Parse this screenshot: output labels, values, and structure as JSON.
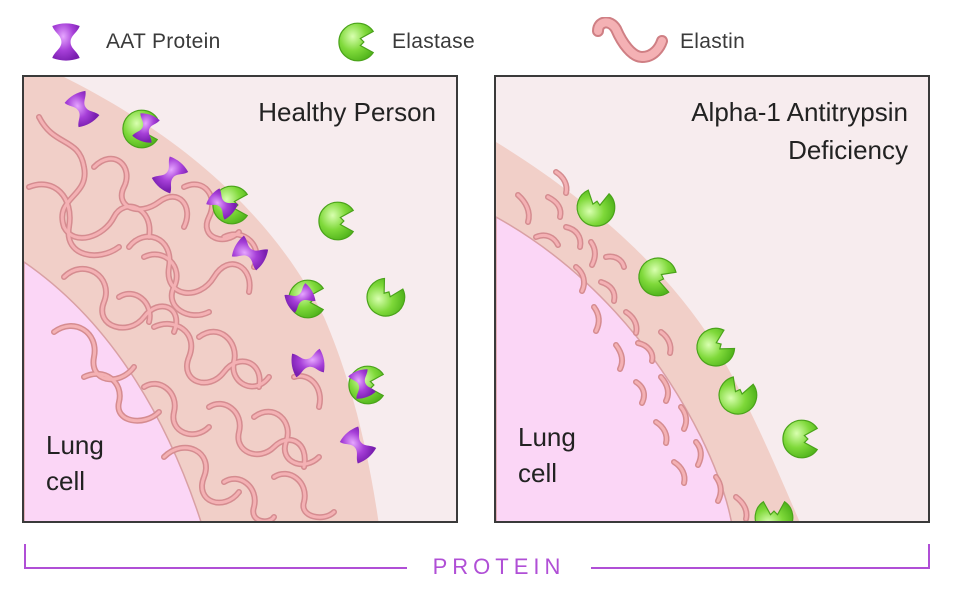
{
  "legend": {
    "aat_label": "AAT Protein",
    "elastase_label": "Elastase",
    "elastin_label": "Elastin"
  },
  "panels": {
    "healthy": {
      "title": "Healthy Person",
      "cell_label_line1": "Lung",
      "cell_label_line2": "cell"
    },
    "deficient": {
      "title_line1": "Alpha-1 Antitrypsin",
      "title_line2": "Deficiency",
      "cell_label_line1": "Lung",
      "cell_label_line2": "cell"
    }
  },
  "axis": {
    "label": "PROTEIN"
  },
  "colors": {
    "aat": "#a63fd8",
    "elastase": "#7fd93a",
    "elastin": "#f2a5a8",
    "tissue": "#f1cfc8",
    "lung_cell": "#fbd6f6",
    "background": "#f7ecee",
    "axis": "#b04fd6"
  },
  "icons": [
    "aat-protein-icon",
    "elastase-icon",
    "elastin-icon"
  ]
}
